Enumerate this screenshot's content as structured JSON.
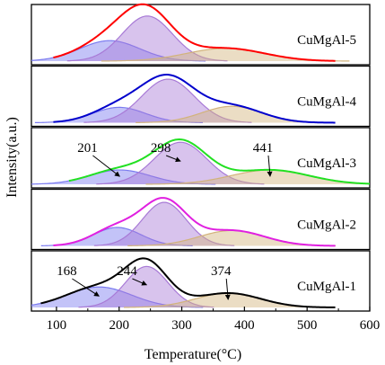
{
  "chart_data": {
    "type": "area",
    "xlabel": "Temperature(°C)",
    "ylabel": "Intensity(a.u.)",
    "xlim": [
      60,
      600
    ],
    "x_ticks": [
      "100",
      "200",
      "300",
      "400",
      "500",
      "600"
    ],
    "x_tick_values": [
      100,
      200,
      300,
      400,
      500,
      600
    ],
    "y_ticks": "none",
    "grid": false,
    "legend": "none",
    "panels": [
      {
        "label": "CuMgAl-5",
        "envelope_color": "#ff0000",
        "envelope_range": [
          95,
          545
        ],
        "peaks": [
          {
            "center": 185,
            "height": 0.4,
            "width": 48,
            "color": "#7b7bf0"
          },
          {
            "center": 245,
            "height": 0.88,
            "width": 40,
            "color": "#a87ad6"
          },
          {
            "center": 370,
            "height": 0.25,
            "width": 62,
            "color": "#d2b37c"
          }
        ]
      },
      {
        "label": "CuMgAl-4",
        "envelope_color": "#0000cc",
        "envelope_range": [
          95,
          545
        ],
        "peaks": [
          {
            "center": 200,
            "height": 0.3,
            "width": 42,
            "color": "#7b7bf0"
          },
          {
            "center": 278,
            "height": 0.85,
            "width": 42,
            "color": "#a87ad6"
          },
          {
            "center": 380,
            "height": 0.32,
            "width": 48,
            "color": "#d2b37c"
          }
        ]
      },
      {
        "label": "CuMgAl-3",
        "envelope_color": "#22e022",
        "envelope_range": [
          120,
          600
        ],
        "peaks": [
          {
            "center": 201,
            "height": 0.28,
            "width": 48,
            "color": "#7b7bf0"
          },
          {
            "center": 298,
            "height": 0.82,
            "width": 42,
            "color": "#a87ad6"
          },
          {
            "center": 441,
            "height": 0.28,
            "width": 62,
            "color": "#d2b37c"
          }
        ],
        "annotations": [
          {
            "text": "201",
            "peak": 0
          },
          {
            "text": "298",
            "peak": 1
          },
          {
            "text": "441",
            "peak": 2
          }
        ]
      },
      {
        "label": "CuMgAl-2",
        "envelope_color": "#e020e0",
        "envelope_range": [
          95,
          545
        ],
        "peaks": [
          {
            "center": 197,
            "height": 0.36,
            "width": 38,
            "color": "#7b7bf0"
          },
          {
            "center": 272,
            "height": 0.85,
            "width": 35,
            "color": "#a87ad6"
          },
          {
            "center": 380,
            "height": 0.3,
            "width": 52,
            "color": "#d2b37c"
          }
        ]
      },
      {
        "label": "CuMgAl-1",
        "envelope_color": "#000000",
        "envelope_range": [
          75,
          545
        ],
        "peaks": [
          {
            "center": 168,
            "height": 0.4,
            "width": 52,
            "color": "#7b7bf0"
          },
          {
            "center": 244,
            "height": 0.8,
            "width": 34,
            "color": "#a87ad6"
          },
          {
            "center": 374,
            "height": 0.28,
            "width": 52,
            "color": "#d2b37c"
          }
        ],
        "annotations": [
          {
            "text": "168",
            "peak": 0
          },
          {
            "text": "244",
            "peak": 1
          },
          {
            "text": "374",
            "peak": 2
          }
        ]
      }
    ]
  }
}
